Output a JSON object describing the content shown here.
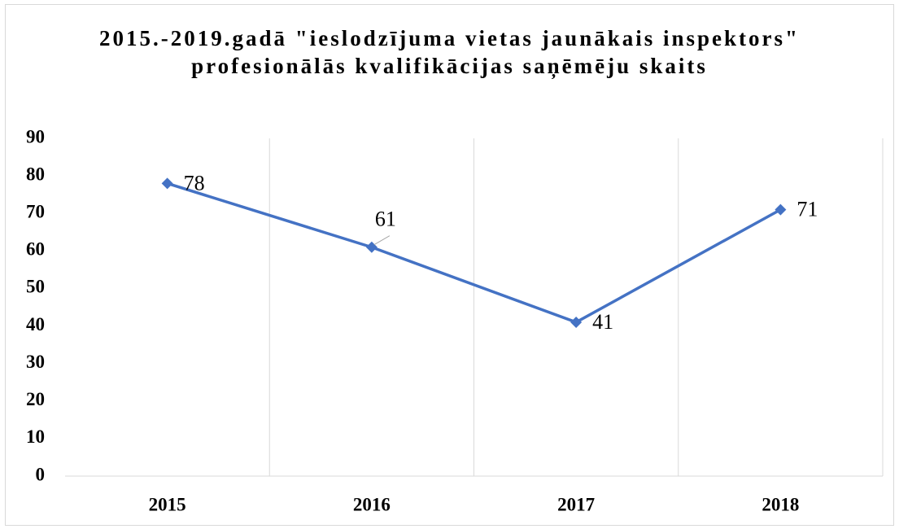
{
  "chart_data": {
    "type": "line",
    "title": "2015.-2019.gadā \"ieslodzījuma vietas jaunākais inspektors\" profesionālās kvalifikācijas saņēmēju skaits",
    "categories": [
      "2015",
      "2016",
      "2017",
      "2018"
    ],
    "values": [
      78,
      61,
      41,
      71
    ],
    "color": "#4472c4",
    "ylim": [
      0,
      90
    ],
    "yticks": [
      0,
      10,
      20,
      30,
      40,
      50,
      60,
      70,
      80,
      90
    ],
    "grid": true
  }
}
